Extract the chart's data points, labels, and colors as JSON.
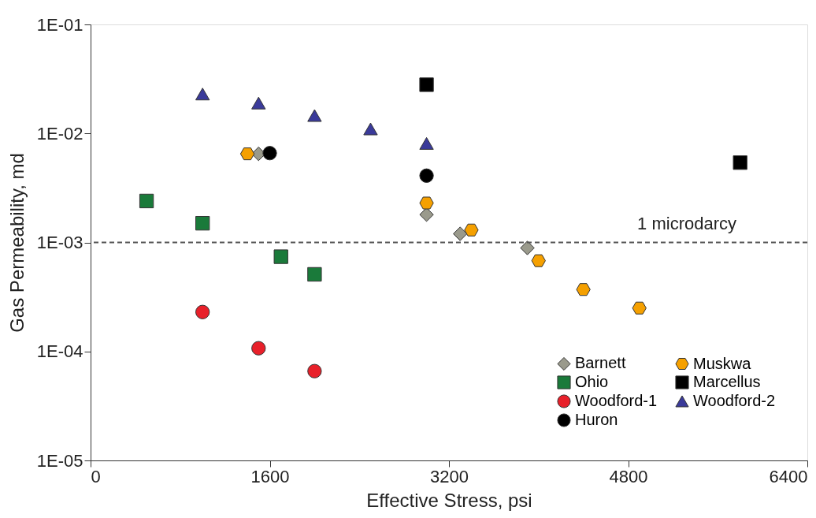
{
  "chart_data": {
    "type": "scatter",
    "xlabel": "Effective Stress, psi",
    "ylabel": "Gas Permeability, md",
    "log": "y",
    "xlim": [
      0,
      6400
    ],
    "xticks": [
      0,
      1600,
      3200,
      4800,
      6400
    ],
    "ylim": [
      1e-05,
      0.1
    ],
    "yticks": [
      {
        "value": 0.1,
        "label": "1E-01"
      },
      {
        "value": 0.01,
        "label": "1E-02"
      },
      {
        "value": 0.001,
        "label": "1E-03"
      },
      {
        "value": 0.0001,
        "label": "1E-04"
      },
      {
        "value": 1e-05,
        "label": "1E-05"
      }
    ],
    "grid": false,
    "legend": "bottom right",
    "ref_lines": [
      {
        "axis": "y",
        "value": 0.001,
        "label": "1 microdarcy",
        "line_style": "dashed",
        "color": "#555555"
      }
    ],
    "series": [
      {
        "name": "Barnett",
        "color": "#9a9a8c",
        "marker": "diamond",
        "x": [
          1500,
          3000,
          3300,
          3900
        ],
        "values": [
          0.0065,
          0.0018,
          0.0012,
          0.00089
        ]
      },
      {
        "name": "Ohio",
        "color": "#1a7a3a",
        "marker": "square",
        "x": [
          500,
          1000,
          1700,
          2000
        ],
        "values": [
          0.0024,
          0.0015,
          0.00074,
          0.00051
        ]
      },
      {
        "name": "Woodford-1",
        "color": "#e8202a",
        "marker": "circle",
        "x": [
          1000,
          1500,
          2000
        ],
        "values": [
          0.00023,
          0.000107,
          6.6e-05
        ]
      },
      {
        "name": "Huron",
        "color": "#000000",
        "marker": "circle",
        "x": [
          1600,
          3000
        ],
        "values": [
          0.0066,
          0.0041
        ]
      },
      {
        "name": "Muskwa",
        "color": "#f5a000",
        "x": [
          1400,
          3000,
          3400,
          4000,
          4400,
          4900
        ],
        "values": [
          0.0065,
          0.0023,
          0.0013,
          0.00068,
          0.00037,
          0.00025
        ]
      },
      {
        "name": "Marcellus",
        "color": "#000000",
        "marker": "square",
        "x": [
          3000,
          5800
        ],
        "values": [
          0.028,
          0.0054
        ]
      },
      {
        "name": "Woodford-2",
        "color": "#3a3a9a",
        "marker": "triangle",
        "x": [
          1000,
          1500,
          2000,
          2500,
          3000
        ],
        "values": [
          0.023,
          0.019,
          0.0146,
          0.011,
          0.0081
        ]
      }
    ]
  }
}
